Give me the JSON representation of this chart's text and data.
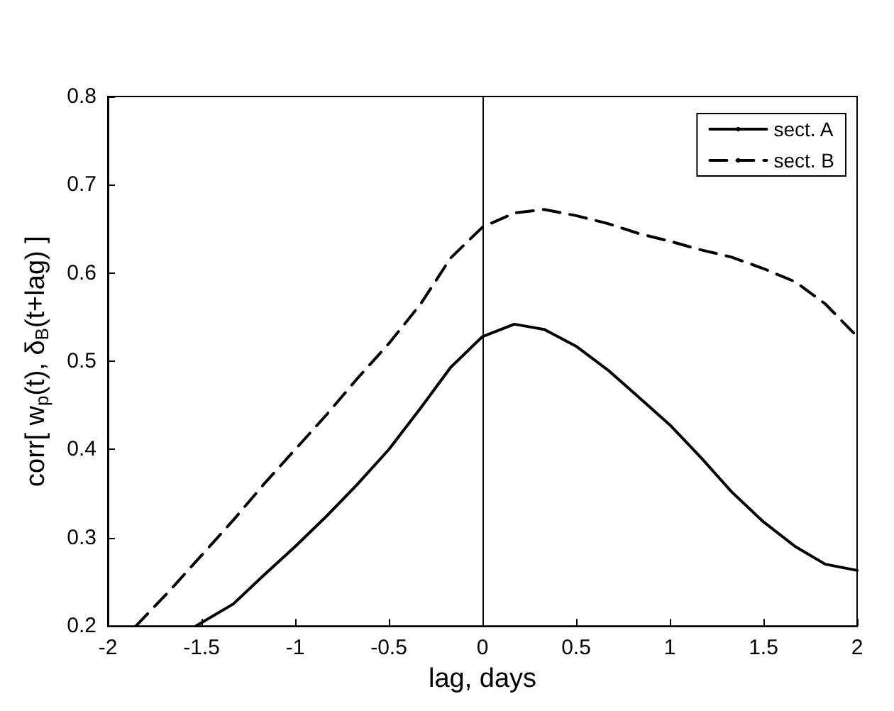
{
  "chart_data": {
    "type": "line",
    "xlabel": "lag, days",
    "ylabel": "corr[ w$_{p}$(t), δ$_{B}$(t+lag) ]",
    "xlim": [
      -2,
      2
    ],
    "xticks": [
      -2,
      -1.5,
      -1,
      -0.5,
      0,
      0.5,
      1,
      1.5,
      2
    ],
    "ylim": [
      0.2,
      0.8
    ],
    "yticks": [
      0.2,
      0.3,
      0.4,
      0.5,
      0.6,
      0.7,
      0.8
    ],
    "grid": false,
    "legend": "top right",
    "marker": "none",
    "ref_lines": [
      {
        "axis": "x",
        "value": 0,
        "color": "#000000",
        "line_style": "solid"
      }
    ],
    "series": [
      {
        "name": "sect. A",
        "color": "#000000",
        "line_style": "solid",
        "x": [
          -1.53,
          -1.33,
          -1.17,
          -1,
          -0.83,
          -0.67,
          -0.5,
          -0.33,
          -0.17,
          0,
          0.17,
          0.33,
          0.5,
          0.67,
          0.83,
          1,
          1.17,
          1.33,
          1.5,
          1.67,
          1.83,
          2
        ],
        "values": [
          0.2,
          0.225,
          0.257,
          0.29,
          0.325,
          0.36,
          0.4,
          0.447,
          0.493,
          0.528,
          0.542,
          0.536,
          0.517,
          0.49,
          0.46,
          0.428,
          0.39,
          0.352,
          0.318,
          0.29,
          0.27,
          0.263
        ]
      },
      {
        "name": "sect. B",
        "color": "#000000",
        "line_style": "dashed",
        "x": [
          -1.85,
          -1.67,
          -1.5,
          -1.33,
          -1.17,
          -1,
          -0.83,
          -0.67,
          -0.5,
          -0.33,
          -0.17,
          0,
          0.17,
          0.33,
          0.5,
          0.67,
          0.83,
          1,
          1.17,
          1.33,
          1.5,
          1.67,
          1.83,
          2
        ],
        "values": [
          0.2,
          0.24,
          0.28,
          0.32,
          0.36,
          0.4,
          0.44,
          0.48,
          0.52,
          0.565,
          0.617,
          0.652,
          0.668,
          0.672,
          0.665,
          0.656,
          0.645,
          0.636,
          0.626,
          0.618,
          0.605,
          0.59,
          0.565,
          0.528
        ]
      }
    ]
  }
}
